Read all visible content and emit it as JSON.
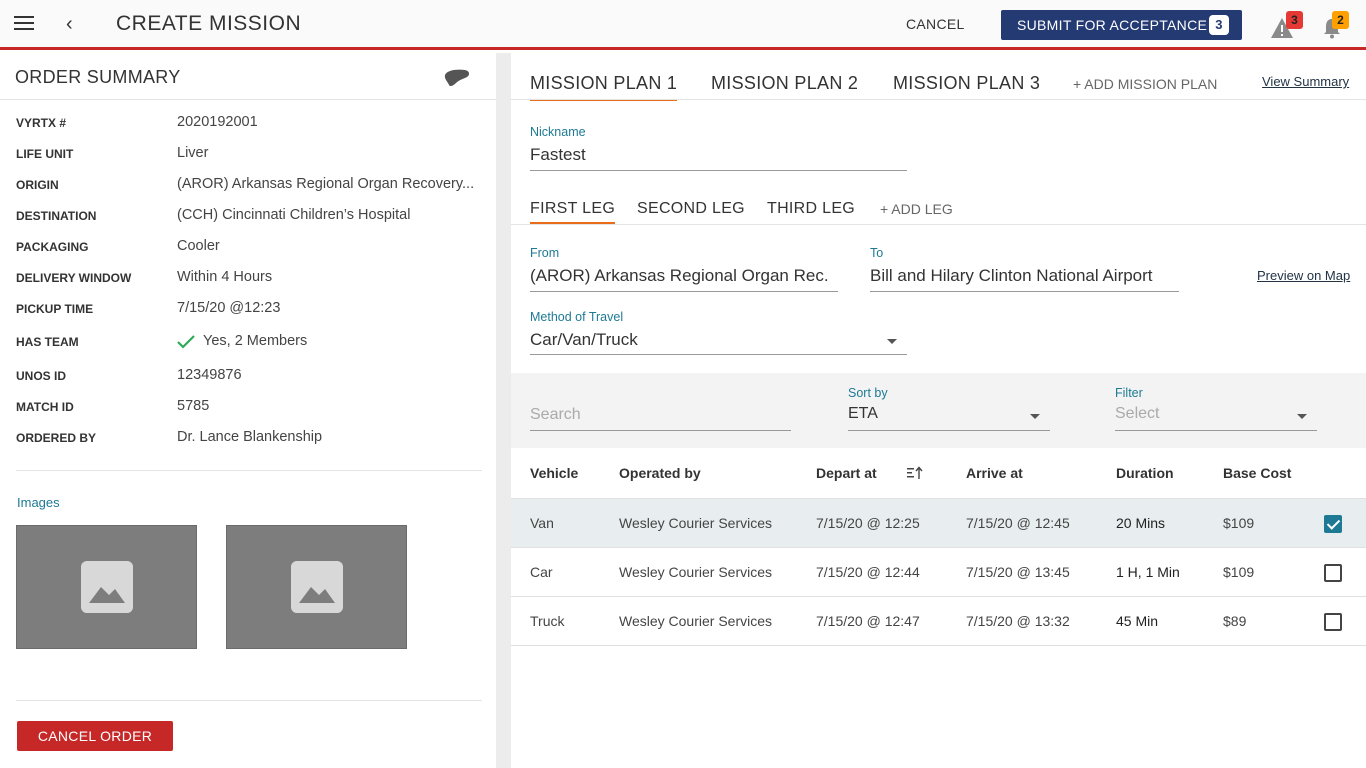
{
  "header": {
    "title": "CREATE MISSION",
    "cancel_label": "CANCEL",
    "submit_label": "SUBMIT FOR ACCEPTANCE",
    "submit_count": "3",
    "warning_count": "3",
    "notification_count": "2"
  },
  "order_summary": {
    "title": "ORDER SUMMARY",
    "rows": [
      {
        "label": "VYRTX #",
        "value": "2020192001"
      },
      {
        "label": "LIFE UNIT",
        "value": "Liver"
      },
      {
        "label": "ORIGIN",
        "value": "(AROR) Arkansas Regional Organ Recovery..."
      },
      {
        "label": "DESTINATION",
        "value": "(CCH) Cincinnati Children’s Hospital"
      },
      {
        "label": "PACKAGING",
        "value": "Cooler"
      },
      {
        "label": "DELIVERY WINDOW",
        "value": "Within 4 Hours"
      },
      {
        "label": "PICKUP TIME",
        "value": "7/15/20 @12:23"
      },
      {
        "label": "HAS TEAM",
        "value": "Yes, 2 Members"
      },
      {
        "label": "UNOS ID",
        "value": "12349876"
      },
      {
        "label": "MATCH ID",
        "value": "5785"
      },
      {
        "label": "ORDERED BY",
        "value": "Dr. Lance Blankenship"
      }
    ],
    "images_label": "Images",
    "cancel_order_label": "CANCEL ORDER"
  },
  "mission_plans": {
    "tabs": [
      "MISSION PLAN 1",
      "MISSION PLAN 2",
      "MISSION PLAN 3"
    ],
    "active_tab": 0,
    "add_label": "+ ADD MISSION PLAN",
    "view_summary_label": "View Summary",
    "nickname_label": "Nickname",
    "nickname_value": "Fastest"
  },
  "legs": {
    "tabs": [
      "FIRST LEG",
      "SECOND LEG",
      "THIRD LEG"
    ],
    "active_tab": 0,
    "add_label": "+ ADD LEG",
    "from_label": "From",
    "from_value": "(AROR) Arkansas Regional Organ Rec...",
    "to_label": "To",
    "to_value": "Bill and Hilary Clinton National Airport",
    "preview_label": "Preview on Map",
    "method_label": "Method of Travel",
    "method_value": "Car/Van/Truck"
  },
  "filters": {
    "search_placeholder": "Search",
    "sort_label": "Sort by",
    "sort_value": "ETA",
    "filter_label": "Filter",
    "filter_placeholder": "Select"
  },
  "table": {
    "headers": [
      "Vehicle",
      "Operated by",
      "Depart at",
      "Arrive at",
      "Duration",
      "Base Cost"
    ],
    "rows": [
      {
        "vehicle": "Van",
        "operator": "Wesley Courier Services",
        "depart": "7/15/20 @ 12:25",
        "arrive": "7/15/20 @ 12:45",
        "duration": "20 Mins",
        "cost": "$109",
        "selected": true
      },
      {
        "vehicle": "Car",
        "operator": "Wesley Courier Services",
        "depart": "7/15/20 @ 12:44",
        "arrive": "7/15/20 @ 13:45",
        "duration": "1 H, 1 Min",
        "cost": "$109",
        "selected": false
      },
      {
        "vehicle": "Truck",
        "operator": "Wesley Courier Services",
        "depart": "7/15/20 @ 12:47",
        "arrive": "7/15/20 @ 13:32",
        "duration": "45 Min",
        "cost": "$89",
        "selected": false
      }
    ]
  },
  "colors": {
    "accent_red": "#c62828",
    "primary_navy": "#243a73",
    "tab_underline": "#e86c1a",
    "label_teal": "#1e7a94"
  }
}
